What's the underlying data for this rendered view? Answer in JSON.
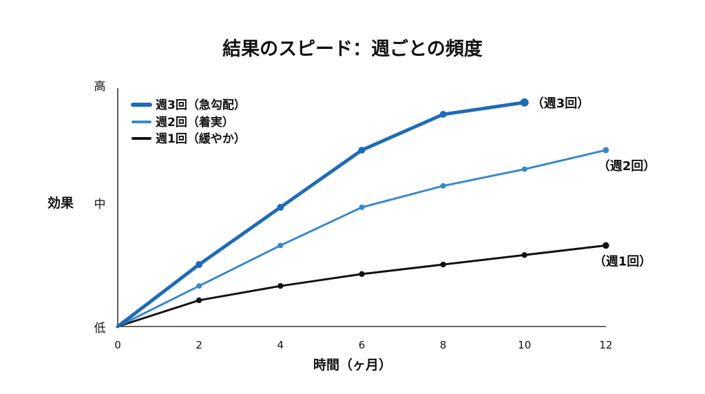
{
  "chart_data": {
    "type": "line",
    "title": "結果のスピード：週ごとの頻度",
    "xlabel": "時間（ヶ月）",
    "ylabel": "効果",
    "x_ticks": [
      "0",
      "2",
      "4",
      "6",
      "8",
      "10",
      "12"
    ],
    "xlim": [
      0,
      12
    ],
    "y_levels": {
      "low": "低",
      "mid": "中",
      "high": "高"
    },
    "ylim": [
      0,
      100
    ],
    "grid": false,
    "legend_position": "top-left",
    "series": [
      {
        "name": "週3回（急勾配）",
        "end_label": "（週3回）",
        "color": "#1f6bb5",
        "x": [
          0,
          2,
          4,
          6,
          8,
          10
        ],
        "y": [
          0,
          26,
          50,
          74,
          89,
          94
        ]
      },
      {
        "name": "週2回（着実）",
        "end_label": "（週2回）",
        "color": "#3b87c9",
        "x": [
          0,
          2,
          4,
          6,
          8,
          10,
          12
        ],
        "y": [
          0,
          17,
          34,
          50,
          59,
          66,
          74
        ]
      },
      {
        "name": "週1回（緩やか）",
        "end_label": "（週1回）",
        "color": "#111111",
        "x": [
          0,
          2,
          4,
          6,
          8,
          10,
          12
        ],
        "y": [
          0,
          11,
          17,
          22,
          26,
          30,
          34
        ]
      }
    ]
  }
}
